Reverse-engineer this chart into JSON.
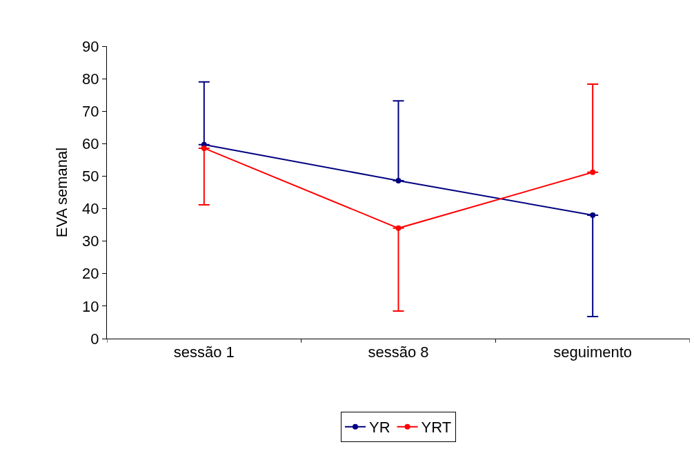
{
  "chart_data": {
    "type": "line",
    "ylabel": "EVA semanal",
    "categories": [
      "sessão 1",
      "sessão 8",
      "seguimento"
    ],
    "series": [
      {
        "name": "YR",
        "color": "#000080",
        "values": [
          59.7,
          48.6,
          38.0
        ],
        "errors": [
          [
            59.7,
            79.0
          ],
          [
            48.6,
            73.2
          ],
          [
            6.8,
            38.0
          ]
        ]
      },
      {
        "name": "YRT",
        "color": "#ff0000",
        "values": [
          58.6,
          34.0,
          51.2
        ],
        "errors": [
          [
            41.2,
            58.6
          ],
          [
            8.5,
            34.0
          ],
          [
            51.2,
            78.3
          ]
        ]
      }
    ],
    "ylim": [
      0,
      90
    ],
    "yticks": [
      0,
      10,
      20,
      30,
      40,
      50,
      60,
      70,
      80,
      90
    ],
    "legend": "bottom",
    "marker": "circle",
    "line_style": "solid"
  }
}
